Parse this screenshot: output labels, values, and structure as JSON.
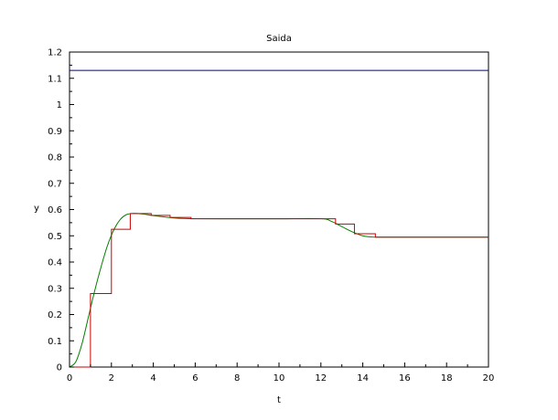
{
  "chart_data": {
    "type": "line",
    "title": "Saida",
    "xlabel": "t",
    "ylabel": "y",
    "xlim": [
      0,
      20
    ],
    "ylim": [
      0,
      1.2
    ],
    "grid": false,
    "x_ticks": [
      "0",
      "2",
      "4",
      "6",
      "8",
      "10",
      "12",
      "14",
      "16",
      "18",
      "20"
    ],
    "y_ticks": [
      "0",
      "0.1",
      "0.2",
      "0.3",
      "0.4",
      "0.5",
      "0.6",
      "0.7",
      "0.8",
      "0.9",
      "1",
      "1.1",
      "1.2"
    ],
    "series": [
      {
        "color": "#000080",
        "style": "line",
        "x": [
          0,
          20
        ],
        "y": [
          1.13,
          1.13
        ]
      },
      {
        "color": "#008000",
        "style": "line",
        "x": [
          0,
          0.3,
          0.6,
          0.9,
          1.2,
          1.5,
          1.8,
          2.1,
          2.4,
          2.7,
          3.0,
          3.5,
          4.0,
          5.0,
          6.0,
          8.0,
          10.0,
          12.0,
          12.5,
          13.0,
          13.5,
          14.0,
          14.5,
          15.0,
          16.0,
          20.0
        ],
        "y": [
          0,
          0.02,
          0.09,
          0.19,
          0.29,
          0.38,
          0.46,
          0.52,
          0.56,
          0.58,
          0.585,
          0.583,
          0.577,
          0.568,
          0.565,
          0.565,
          0.565,
          0.565,
          0.555,
          0.535,
          0.515,
          0.5,
          0.495,
          0.495,
          0.495,
          0.495
        ]
      },
      {
        "color": "#cc0000",
        "style": "step",
        "x": [
          0,
          1,
          1,
          2,
          2,
          2.9,
          2.9,
          3.9,
          3.9,
          4.8,
          4.8,
          5.8,
          5.8,
          12.7,
          12.7,
          13.6,
          13.6,
          14.6,
          14.6,
          20
        ],
        "y": [
          0,
          0,
          0.28,
          0.28,
          0.525,
          0.525,
          0.585,
          0.585,
          0.578,
          0.578,
          0.57,
          0.57,
          0.565,
          0.565,
          0.545,
          0.545,
          0.508,
          0.508,
          0.495,
          0.495
        ]
      }
    ]
  }
}
